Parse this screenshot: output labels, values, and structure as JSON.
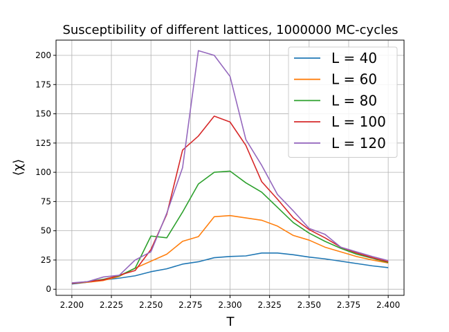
{
  "chart_data": {
    "type": "line",
    "title": "Susceptibility of different lattices, 1000000 MC-cycles",
    "xlabel": "T",
    "ylabel": "⟨χ⟩",
    "xlim": [
      2.19,
      2.41
    ],
    "ylim": [
      -5.2,
      213
    ],
    "xticks": [
      2.2,
      2.225,
      2.25,
      2.275,
      2.3,
      2.325,
      2.35,
      2.375,
      2.4
    ],
    "xtick_labels": [
      "2.200",
      "2.225",
      "2.250",
      "2.275",
      "2.300",
      "2.325",
      "2.350",
      "2.375",
      "2.400"
    ],
    "yticks": [
      0,
      25,
      50,
      75,
      100,
      125,
      150,
      175,
      200
    ],
    "ytick_labels": [
      "0",
      "25",
      "50",
      "75",
      "100",
      "125",
      "150",
      "175",
      "200"
    ],
    "grid": true,
    "legend_position": "top-right",
    "x": [
      2.2,
      2.21,
      2.22,
      2.23,
      2.24,
      2.25,
      2.26,
      2.27,
      2.28,
      2.29,
      2.3,
      2.31,
      2.32,
      2.33,
      2.34,
      2.35,
      2.36,
      2.37,
      2.38,
      2.39,
      2.4
    ],
    "series": [
      {
        "name": "L = 40",
        "color": "#1f77b4",
        "values": [
          4.5,
          6.0,
          8.0,
          9.5,
          11.5,
          15.0,
          17.5,
          21.5,
          23.5,
          27.0,
          28.0,
          28.5,
          31.0,
          31.0,
          29.5,
          27.5,
          26.0,
          24.0,
          22.0,
          20.0,
          18.5
        ]
      },
      {
        "name": "L = 60",
        "color": "#ff7f0e",
        "values": [
          5.0,
          6.0,
          7.5,
          11.0,
          18.0,
          24.0,
          30.0,
          41.0,
          45.0,
          62.0,
          63.0,
          61.0,
          59.0,
          54.0,
          46.0,
          42.0,
          36.0,
          32.0,
          28.0,
          25.0,
          22.5
        ]
      },
      {
        "name": "L = 80",
        "color": "#2ca02c",
        "values": [
          5.0,
          6.5,
          8.5,
          11.5,
          18.0,
          45.5,
          44.0,
          66.0,
          90.0,
          100.0,
          101.0,
          91.0,
          83.0,
          70.0,
          57.0,
          48.0,
          41.0,
          35.0,
          30.0,
          26.5,
          23.0
        ]
      },
      {
        "name": "L = 100",
        "color": "#d62728",
        "values": [
          5.0,
          6.5,
          8.0,
          12.0,
          16.0,
          34.0,
          64.0,
          119.0,
          131.0,
          148.0,
          143.0,
          123.0,
          92.0,
          77.0,
          61.0,
          51.0,
          44.0,
          36.0,
          31.0,
          27.0,
          23.5
        ]
      },
      {
        "name": "L = 120",
        "color": "#9467bd",
        "values": [
          5.5,
          6.5,
          10.5,
          12.0,
          25.0,
          32.0,
          65.0,
          104.0,
          204.0,
          200.0,
          182.0,
          128.0,
          106.0,
          81.0,
          67.0,
          52.0,
          47.0,
          36.0,
          32.0,
          28.0,
          24.5
        ]
      }
    ]
  }
}
